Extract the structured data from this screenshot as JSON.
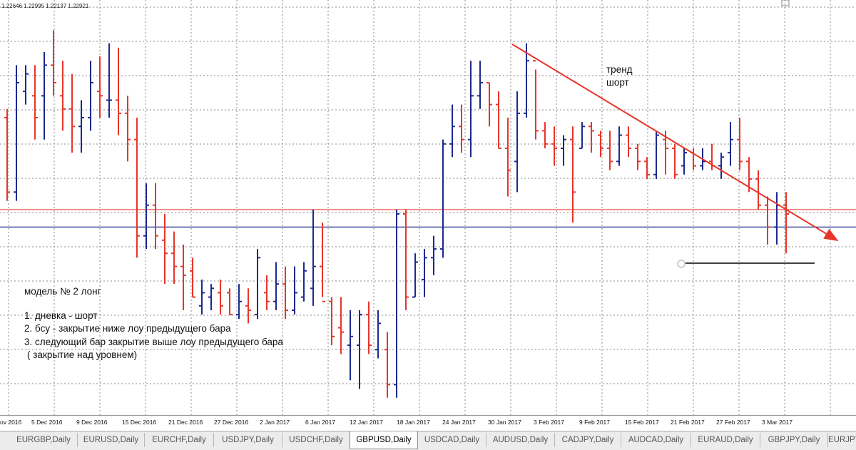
{
  "window": {
    "ohlc_header": "1.22646 1.22995 1.22137 1.22921"
  },
  "annotations": {
    "trend_label_line1": "тренд",
    "trend_label_line2": "шорт",
    "model_title": "модель № 2 лонг",
    "rule_1": "1. дневка - шорт",
    "rule_2": "2. бсу - закрытие ниже лоу предыдущего бара",
    "rule_3": "3. следующий бар закрытие выше лоу предыдущего бара",
    "rule_3_note": "( закрытие над уровнем)"
  },
  "date_axis": {
    "labels": [
      "ov 2016",
      "5 Dec 2016",
      "9 Dec 2016",
      "15 Dec 2016",
      "21 Dec 2016",
      "27 Dec 2016",
      "2 Jan 2017",
      "6 Jan 2017",
      "12 Jan 2017",
      "18 Jan 2017",
      "24 Jan 2017",
      "30 Jan 2017",
      "3 Feb 2017",
      "9 Feb 2017",
      "15 Feb 2017",
      "21 Feb 2017",
      "27 Feb 2017",
      "3 Mar 2017"
    ]
  },
  "tabs": [
    {
      "label": "EURGBP,Daily",
      "active": false
    },
    {
      "label": "EURUSD,Daily",
      "active": false
    },
    {
      "label": "EURCHF,Daily",
      "active": false
    },
    {
      "label": "USDJPY,Daily",
      "active": false
    },
    {
      "label": "USDCHF,Daily",
      "active": false
    },
    {
      "label": "GBPUSD,Daily",
      "active": true
    },
    {
      "label": "USDCAD,Daily",
      "active": false
    },
    {
      "label": "AUDUSD,Daily",
      "active": false
    },
    {
      "label": "CADJPY,Daily",
      "active": false
    },
    {
      "label": "AUDCAD,Daily",
      "active": false
    },
    {
      "label": "EURAUD,Daily",
      "active": false
    },
    {
      "label": "GBPJPY,Daily",
      "active": false
    },
    {
      "label": "EURJPY",
      "active": false
    }
  ],
  "colors": {
    "bull_bar": "#1c2a8c",
    "bear_bar": "#e8352a",
    "trendline": "#e8352a",
    "support_blue": "#1c2a8c",
    "level_red": "#e8352a",
    "drawn_segment": "#000000",
    "grid": "#8a8a8a"
  },
  "chart_data": {
    "type": "ohlc",
    "symbol": "GBPUSD",
    "timeframe": "Daily",
    "series": [
      {
        "values": [
          [
            1.24,
            1.242,
            1.221,
            1.223
          ],
          [
            1.223,
            1.252,
            1.221,
            1.248
          ],
          [
            1.246,
            1.252,
            1.243,
            1.25
          ],
          [
            1.245,
            1.252,
            1.235,
            1.24
          ],
          [
            1.245,
            1.255,
            1.235,
            1.252
          ],
          [
            1.252,
            1.26,
            1.245,
            1.248
          ],
          [
            1.245,
            1.253,
            1.237,
            1.242
          ],
          [
            1.242,
            1.25,
            1.232,
            1.238
          ],
          [
            1.238,
            1.244,
            1.232,
            1.24
          ],
          [
            1.24,
            1.253,
            1.237,
            1.248
          ],
          [
            1.246,
            1.254,
            1.24,
            1.245
          ],
          [
            1.244,
            1.257,
            1.24,
            1.244
          ],
          [
            1.244,
            1.256,
            1.236,
            1.241
          ],
          [
            1.241,
            1.245,
            1.23,
            1.235
          ],
          [
            1.235,
            1.24,
            1.208,
            1.213
          ],
          [
            1.213,
            1.225,
            1.21,
            1.22
          ],
          [
            1.22,
            1.225,
            1.21,
            1.213
          ],
          [
            1.212,
            1.218,
            1.202,
            1.209
          ],
          [
            1.209,
            1.214,
            1.202,
            1.206
          ],
          [
            1.206,
            1.211,
            1.196,
            1.204
          ],
          [
            1.205,
            1.208,
            1.199,
            1.199
          ],
          [
            1.197,
            1.203,
            1.195,
            1.2
          ],
          [
            1.199,
            1.202,
            1.196,
            1.201
          ],
          [
            1.2,
            1.203,
            1.195,
            1.197
          ],
          [
            1.2,
            1.201,
            1.195,
            1.195
          ],
          [
            1.195,
            1.202,
            1.194,
            1.198
          ],
          [
            1.197,
            1.201,
            1.193,
            1.196
          ],
          [
            1.195,
            1.21,
            1.194,
            1.208
          ],
          [
            1.2,
            1.204,
            1.196,
            1.198
          ],
          [
            1.198,
            1.207,
            1.196,
            1.202
          ],
          [
            1.202,
            1.206,
            1.194,
            1.196
          ],
          [
            1.196,
            1.206,
            1.195,
            1.2
          ],
          [
            1.199,
            1.207,
            1.198,
            1.205
          ],
          [
            1.201,
            1.219,
            1.197,
            1.206
          ],
          [
            1.206,
            1.216,
            1.199,
            1.198
          ],
          [
            1.198,
            1.199,
            1.188,
            1.19
          ],
          [
            1.192,
            1.199,
            1.186,
            1.191
          ],
          [
            1.188,
            1.196,
            1.18,
            1.19
          ],
          [
            1.188,
            1.196,
            1.178,
            1.195
          ],
          [
            1.195,
            1.198,
            1.186,
            1.188
          ],
          [
            1.187,
            1.196,
            1.185,
            1.193
          ],
          [
            1.187,
            1.191,
            1.176,
            1.179
          ],
          [
            1.179,
            1.219,
            1.176,
            1.218
          ],
          [
            1.218,
            1.219,
            1.196,
            1.199
          ],
          [
            1.199,
            1.209,
            1.199,
            1.207
          ],
          [
            1.203,
            1.21,
            1.199,
            1.208
          ],
          [
            1.208,
            1.213,
            1.204,
            1.21
          ],
          [
            1.21,
            1.235,
            1.208,
            1.234
          ],
          [
            1.234,
            1.243,
            1.231,
            1.238
          ],
          [
            1.238,
            1.243,
            1.232,
            1.235
          ],
          [
            1.235,
            1.253,
            1.231,
            1.245
          ],
          [
            1.245,
            1.253,
            1.242,
            1.248
          ],
          [
            1.248,
            1.248,
            1.238,
            1.243
          ],
          [
            1.243,
            1.246,
            1.233,
            1.233
          ],
          [
            1.233,
            1.24,
            1.222,
            1.228
          ],
          [
            1.23,
            1.246,
            1.223,
            1.241
          ],
          [
            1.241,
            1.257,
            1.24,
            1.253
          ],
          [
            1.253,
            1.251,
            1.235,
            1.237
          ],
          [
            1.237,
            1.239,
            1.233,
            1.234
          ],
          [
            1.234,
            1.238,
            1.229,
            1.233
          ],
          [
            1.233,
            1.236,
            1.229,
            1.235
          ],
          [
            1.235,
            1.238,
            1.216,
            1.223
          ],
          [
            1.233,
            1.239,
            1.233,
            1.238
          ],
          [
            1.238,
            1.239,
            1.232,
            1.237
          ],
          [
            1.236,
            1.237,
            1.231,
            1.233
          ],
          [
            1.233,
            1.237,
            1.228,
            1.23
          ],
          [
            1.23,
            1.238,
            1.229,
            1.236
          ],
          [
            1.236,
            1.238,
            1.231,
            1.233
          ],
          [
            1.233,
            1.234,
            1.228,
            1.23
          ],
          [
            1.23,
            1.231,
            1.226,
            1.227
          ],
          [
            1.227,
            1.237,
            1.226,
            1.236
          ],
          [
            1.235,
            1.237,
            1.227,
            1.233
          ],
          [
            1.233,
            1.234,
            1.226,
            1.227
          ],
          [
            1.229,
            1.233,
            1.227,
            1.232
          ],
          [
            1.232,
            1.233,
            1.228,
            1.229
          ],
          [
            1.229,
            1.233,
            1.228,
            1.23
          ],
          [
            1.23,
            1.234,
            1.228,
            1.229
          ],
          [
            1.229,
            1.232,
            1.226,
            1.231
          ],
          [
            1.232,
            1.239,
            1.229,
            1.235
          ],
          [
            1.235,
            1.24,
            1.228,
            1.23
          ],
          [
            1.23,
            1.231,
            1.223,
            1.226
          ],
          [
            1.226,
            1.228,
            1.219,
            1.22
          ],
          [
            1.22,
            1.222,
            1.211,
            1.215
          ],
          [
            1.215,
            1.223,
            1.211,
            1.22
          ],
          [
            1.22,
            1.223,
            1.209,
            1.218
          ]
        ]
      }
    ],
    "grid": true,
    "levels": {
      "support_blue": 1.215,
      "resistance_red": 1.219
    }
  }
}
